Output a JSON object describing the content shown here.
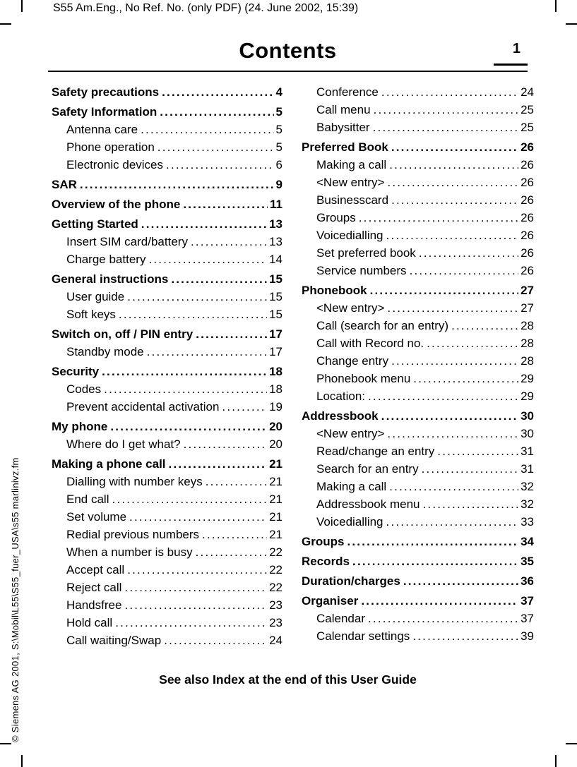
{
  "page": {
    "header": "S55 Am.Eng., No Ref. No. (only PDF) (24. June 2002, 15:39)",
    "title": "Contents",
    "page_number": "1",
    "footer_note": "See also Index at the end of this User Guide",
    "side_note": "© Siemens AG 2001, S:\\Mobil\\L55\\S55_fuer_USA\\s55 marlinivz.fm"
  },
  "toc": {
    "left": [
      {
        "label": "Safety precautions",
        "page": "4",
        "bold": true
      },
      {
        "label": "Safety Information",
        "page": "5",
        "bold": true
      },
      {
        "label": "Antenna care",
        "page": "5"
      },
      {
        "label": "Phone operation",
        "page": "5"
      },
      {
        "label": "Electronic devices",
        "page": "6"
      },
      {
        "label": "SAR",
        "page": "9",
        "bold": true
      },
      {
        "label": "Overview of the phone",
        "page": "11",
        "bold": true
      },
      {
        "label": "Getting Started",
        "page": "13",
        "bold": true
      },
      {
        "label": "Insert SIM card/battery",
        "page": "13"
      },
      {
        "label": "Charge battery",
        "page": "14"
      },
      {
        "label": "General instructions",
        "page": "15",
        "bold": true
      },
      {
        "label": "User guide",
        "page": "15"
      },
      {
        "label": "Soft keys",
        "page": "15"
      },
      {
        "label": "Switch on, off / PIN entry",
        "page": "17",
        "bold": true
      },
      {
        "label": "Standby mode",
        "page": "17"
      },
      {
        "label": "Security",
        "page": "18",
        "bold": true
      },
      {
        "label": "Codes",
        "page": "18"
      },
      {
        "label": "Prevent accidental activation",
        "page": "19"
      },
      {
        "label": "My phone",
        "page": "20",
        "bold": true
      },
      {
        "label": "Where do I get what?",
        "page": "20"
      },
      {
        "label": "Making a phone call",
        "page": "21",
        "bold": true
      },
      {
        "label": "Dialling with number keys",
        "page": "21"
      },
      {
        "label": "End call",
        "page": "21"
      },
      {
        "label": "Set volume",
        "page": "21"
      },
      {
        "label": "Redial previous numbers",
        "page": "21"
      },
      {
        "label": "When a number is busy",
        "page": "22"
      },
      {
        "label": "Accept call",
        "page": "22"
      },
      {
        "label": "Reject call",
        "page": "22"
      },
      {
        "label": "Handsfree",
        "page": "23"
      },
      {
        "label": "Hold call",
        "page": "23"
      },
      {
        "label": "Call waiting/Swap",
        "page": "24"
      }
    ],
    "right": [
      {
        "label": "Conference",
        "page": "24"
      },
      {
        "label": "Call menu",
        "page": "25"
      },
      {
        "label": "Babysitter",
        "page": "25"
      },
      {
        "label": "Preferred Book",
        "page": "26",
        "bold": true
      },
      {
        "label": "Making a call",
        "page": "26"
      },
      {
        "label": "<New entry>",
        "page": "26"
      },
      {
        "label": "Businesscard",
        "page": "26"
      },
      {
        "label": "Groups",
        "page": "26"
      },
      {
        "label": "Voicedialling",
        "page": "26"
      },
      {
        "label": "Set preferred book",
        "page": "26"
      },
      {
        "label": "Service numbers",
        "page": "26"
      },
      {
        "label": "Phonebook",
        "page": "27",
        "bold": true
      },
      {
        "label": "<New entry>",
        "page": "27"
      },
      {
        "label": "Call (search for an entry)",
        "page": "28"
      },
      {
        "label": "Call with Record no.",
        "page": "28"
      },
      {
        "label": "Change entry",
        "page": "28"
      },
      {
        "label": "Phonebook menu",
        "page": "29"
      },
      {
        "label": "Location:",
        "page": "29"
      },
      {
        "label": "Addressbook",
        "page": "30",
        "bold": true
      },
      {
        "label": "<New entry>",
        "page": "30"
      },
      {
        "label": "Read/change an entry",
        "page": "31"
      },
      {
        "label": "Search for an entry",
        "page": "31"
      },
      {
        "label": "Making a call",
        "page": "32"
      },
      {
        "label": "Addressbook menu",
        "page": "32"
      },
      {
        "label": "Voicedialling",
        "page": "33"
      },
      {
        "label": "Groups",
        "page": "34",
        "bold": true
      },
      {
        "label": "Records",
        "page": "35",
        "bold": true
      },
      {
        "label": "Duration/charges",
        "page": "36",
        "bold": true
      },
      {
        "label": "Organiser",
        "page": "37",
        "bold": true
      },
      {
        "label": "Calendar",
        "page": "37"
      },
      {
        "label": "Calendar settings",
        "page": "39"
      }
    ]
  }
}
